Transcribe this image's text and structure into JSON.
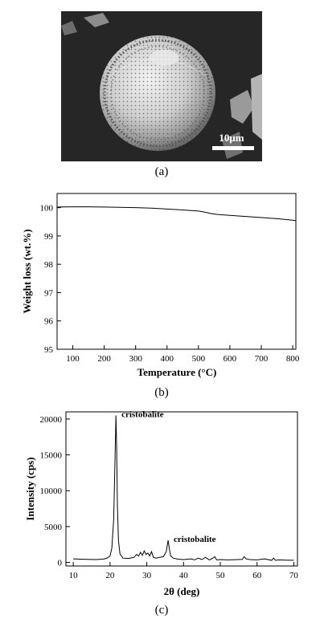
{
  "panels": {
    "a": {
      "label": "(a)",
      "scale_bar_text": "10μm"
    },
    "b": {
      "label": "(b)",
      "chart_data": {
        "type": "line",
        "xlabel": "Temperature (°C)",
        "ylabel": "Weight loss (wt.%)",
        "xlim": [
          50,
          810
        ],
        "ylim": [
          95,
          100.5
        ],
        "xticks": [
          100,
          200,
          300,
          400,
          500,
          600,
          700,
          800
        ],
        "yticks": [
          95,
          96,
          97,
          98,
          99,
          100
        ],
        "grid": false,
        "series": [
          {
            "x": [
              50,
              100,
              150,
              200,
              250,
              300,
              350,
              400,
              450,
              500,
              520,
              540,
              560,
              600,
              650,
              700,
              750,
              800,
              810
            ],
            "y": [
              100.02,
              100.03,
              100.03,
              100.02,
              100.01,
              100.0,
              99.98,
              99.95,
              99.92,
              99.88,
              99.84,
              99.79,
              99.76,
              99.73,
              99.69,
              99.65,
              99.61,
              99.56,
              99.54
            ]
          }
        ]
      }
    },
    "c": {
      "label": "(c)",
      "chart_data": {
        "type": "line",
        "xlabel": "2θ (deg)",
        "ylabel": "Intensity (cps)",
        "xlim": [
          8,
          71
        ],
        "ylim": [
          -500,
          21000
        ],
        "xticks": [
          10,
          20,
          30,
          40,
          50,
          60,
          70
        ],
        "yticks": [
          0,
          5000,
          10000,
          15000,
          20000
        ],
        "grid": false,
        "annotations": [
          {
            "text": "cristobalite",
            "x": 21.8,
            "y": 20500
          },
          {
            "text": "cristobalite",
            "x": 36.0,
            "y": 3100
          }
        ],
        "series": [
          {
            "x": [
              10,
              12,
              14,
              16,
              18,
              19,
              20,
              20.5,
              21,
              21.3,
              21.6,
              21.8,
              22.0,
              22.3,
              22.7,
              23.5,
              25,
              26.5,
              27.2,
              27.8,
              28.3,
              28.8,
              29.3,
              29.8,
              30.3,
              30.8,
              31.3,
              31.8,
              32.5,
              33.5,
              34.5,
              35.3,
              35.8,
              36.1,
              36.5,
              37.2,
              38.5,
              40,
              42,
              43,
              44,
              45,
              46,
              47,
              48,
              48.5,
              49,
              50,
              52,
              54,
              56,
              56.5,
              57,
              58,
              60,
              62,
              64,
              64.5,
              65,
              66,
              68,
              70
            ],
            "y": [
              500,
              450,
              420,
              400,
              450,
              550,
              900,
              2000,
              6000,
              13000,
              20500,
              16000,
              8000,
              3000,
              1200,
              600,
              550,
              700,
              1100,
              900,
              1400,
              1000,
              1600,
              1100,
              1300,
              900,
              1500,
              700,
              600,
              700,
              800,
              1500,
              3100,
              2000,
              900,
              600,
              450,
              400,
              500,
              350,
              600,
              400,
              700,
              350,
              600,
              800,
              350,
              400,
              350,
              380,
              420,
              800,
              500,
              400,
              350,
              500,
              300,
              600,
              300,
              350,
              320,
              300
            ]
          }
        ]
      }
    }
  }
}
